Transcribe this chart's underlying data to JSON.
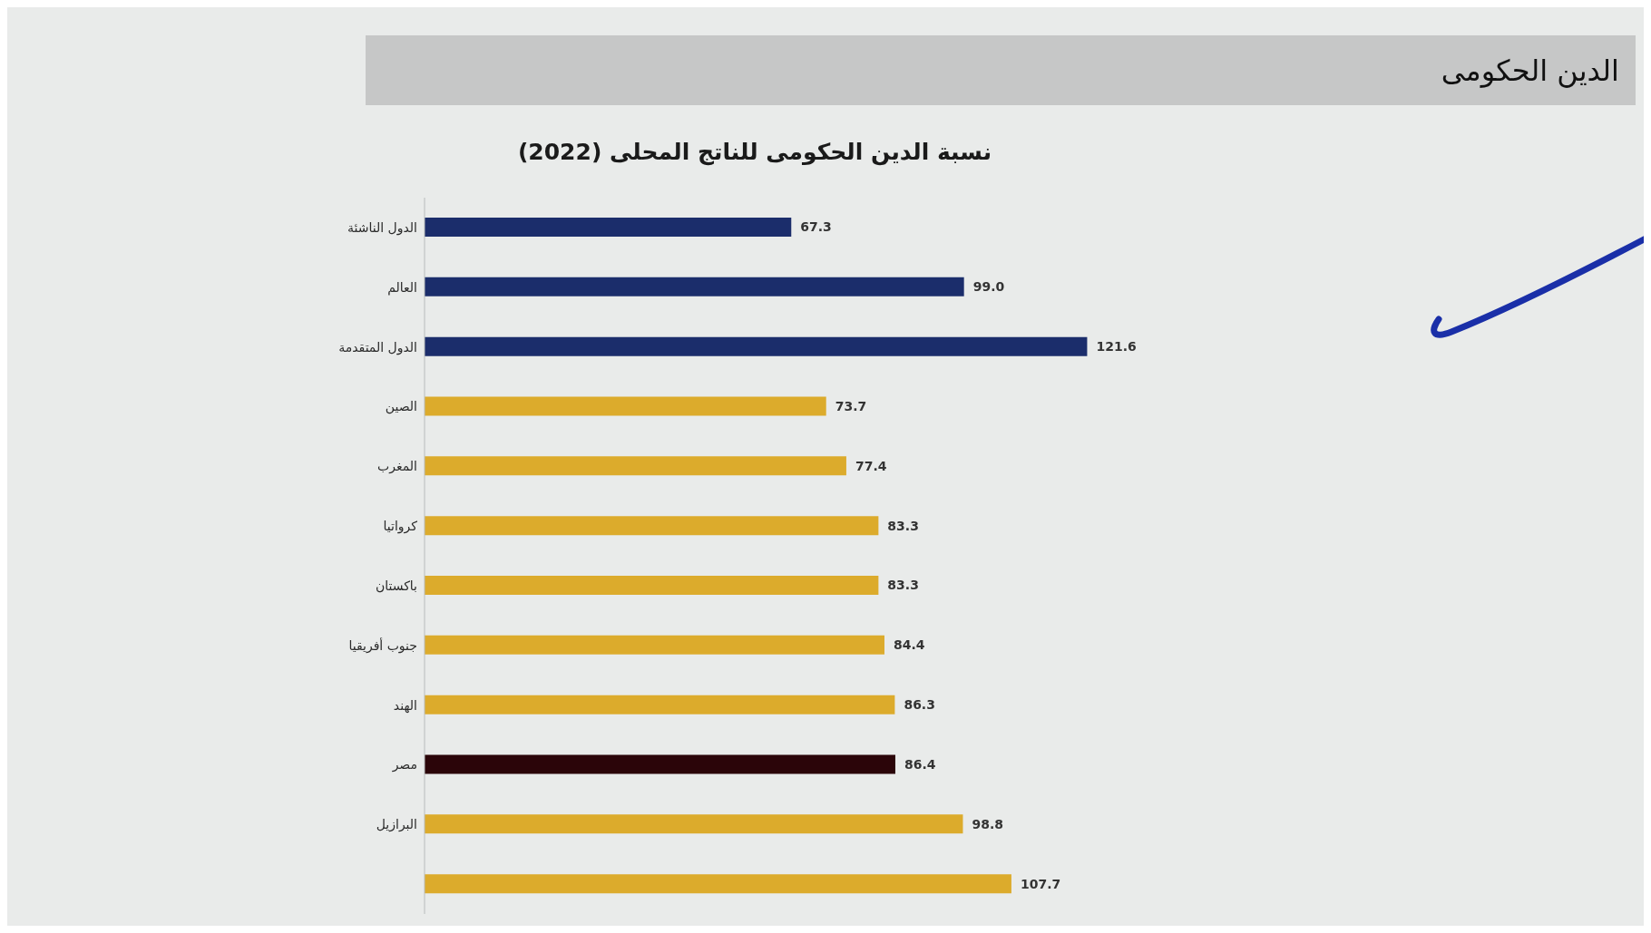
{
  "chart_data": {
    "type": "bar",
    "orientation": "horizontal",
    "title": "الدين الحكومى",
    "subtitle": "نسبة الدين الحكومى للناتج المحلى (2022)",
    "categories": [
      "الدول الناشئة",
      "العالم",
      "الدول المتقدمة",
      "الصين",
      "المغرب",
      "كرواتيا",
      "باكستان",
      "جنوب أفريقيا",
      "الهند",
      "مصر",
      "البرازيل",
      null
    ],
    "values": [
      67.3,
      99.0,
      121.6,
      73.7,
      77.4,
      83.3,
      83.3,
      84.4,
      86.3,
      86.4,
      98.8,
      107.7
    ],
    "value_labels": [
      "67.3",
      "99.0",
      "121.6",
      "73.7",
      "77.4",
      "83.3",
      "83.3",
      "84.4",
      "86.3",
      "86.4",
      "98.8",
      "107.7"
    ],
    "colors": [
      "#1b2d6b",
      "#1b2d6b",
      "#1b2d6b",
      "#dcab2c",
      "#dcab2c",
      "#dcab2c",
      "#dcab2c",
      "#dcab2c",
      "#dcab2c",
      "#2b0509",
      "#dcab2c",
      "#dcab2c"
    ],
    "tick_labels": "y",
    "grid": false,
    "legend": false
  }
}
